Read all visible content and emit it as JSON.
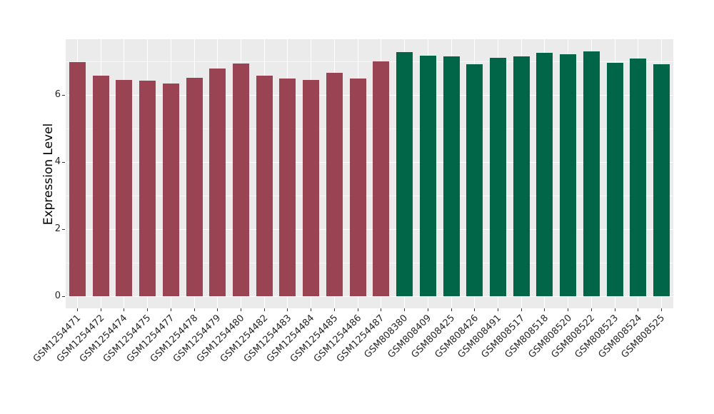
{
  "chart_data": {
    "type": "bar",
    "title": "",
    "xlabel": "",
    "ylabel": "Expression Level",
    "categories": [
      "GSM1254471",
      "GSM1254472",
      "GSM1254474",
      "GSM1254475",
      "GSM1254477",
      "GSM1254478",
      "GSM1254479",
      "GSM1254480",
      "GSM1254482",
      "GSM1254483",
      "GSM1254484",
      "GSM1254485",
      "GSM1254486",
      "GSM1254487",
      "GSM808380",
      "GSM808409",
      "GSM808425",
      "GSM808426",
      "GSM808491",
      "GSM808517",
      "GSM808518",
      "GSM808520",
      "GSM808522",
      "GSM808523",
      "GSM808524",
      "GSM808525"
    ],
    "values": [
      6.97,
      6.57,
      6.44,
      6.42,
      6.35,
      6.51,
      6.78,
      6.94,
      6.58,
      6.48,
      6.45,
      6.67,
      6.48,
      7.0,
      7.28,
      7.18,
      7.14,
      6.92,
      7.1,
      7.15,
      7.26,
      7.22,
      7.29,
      6.95,
      7.08,
      6.91
    ],
    "bar_color_groups": [
      {
        "color": "#9A4453",
        "count": 14
      },
      {
        "color": "#016647",
        "count": 12
      }
    ],
    "y_ticks": [
      0,
      2,
      4,
      6
    ],
    "y_minor_ticks": [
      1,
      3,
      5,
      7
    ],
    "ylim": [
      0,
      7.65
    ],
    "grid": "major and minor horizontal white gridlines, vertical white gridline at each category center",
    "legend_position": "none",
    "panel_background": "#EBEBEB",
    "gridline_color": "#FFFFFF",
    "tick_mark_color": "#333333",
    "tick_label_color": "#262626",
    "axis_title_color": "#000000",
    "x_tick_label_angle_deg": 45
  }
}
